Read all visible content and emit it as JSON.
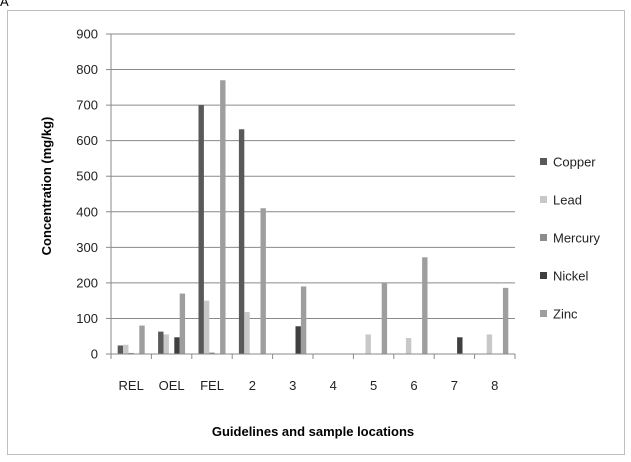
{
  "panel_label": "A",
  "chart_data": {
    "type": "bar",
    "title": "",
    "xlabel": "Guidelines and sample locations",
    "ylabel": "Concentration (mg/kg)",
    "ylim": [
      0,
      900
    ],
    "yticks": [
      0,
      100,
      200,
      300,
      400,
      500,
      600,
      700,
      800,
      900
    ],
    "grid": true,
    "legend_position": "right",
    "categories": [
      "REL",
      "OEL",
      "FEL",
      "2",
      "3",
      "4",
      "5",
      "6",
      "7",
      "8"
    ],
    "series": [
      {
        "name": "Copper",
        "color": "#595959",
        "values": [
          24,
          63,
          700,
          632,
          0,
          0,
          0,
          0,
          0,
          0
        ]
      },
      {
        "name": "Lead",
        "color": "#c8c8c8",
        "values": [
          26,
          55,
          150,
          118,
          0,
          0,
          55,
          45,
          0,
          55
        ]
      },
      {
        "name": "Mercury",
        "color": "#8c8c8c",
        "values": [
          3,
          0,
          4,
          0,
          0,
          0,
          0,
          0,
          0,
          0
        ]
      },
      {
        "name": "Nickel",
        "color": "#3f3f3f",
        "values": [
          0,
          47,
          0,
          0,
          78,
          0,
          0,
          0,
          47,
          0
        ]
      },
      {
        "name": "Zinc",
        "color": "#9e9e9e",
        "values": [
          80,
          170,
          770,
          410,
          190,
          0,
          200,
          272,
          0,
          186
        ]
      }
    ]
  }
}
